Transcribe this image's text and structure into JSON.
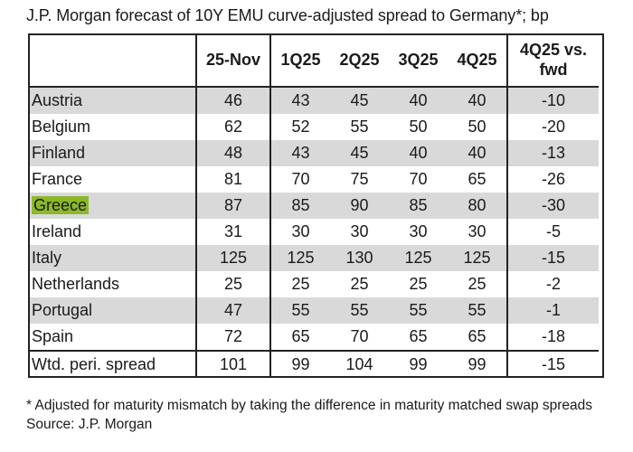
{
  "title": "J.P. Morgan forecast of 10Y EMU curve-adjusted spread to Germany*; bp",
  "header": {
    "blank": "",
    "c1": "25-Nov",
    "c2": "1Q25",
    "c3": "2Q25",
    "c4": "3Q25",
    "c5": "4Q25",
    "c6_line1": "4Q25 vs.",
    "c6_line2": "fwd"
  },
  "rows": [
    {
      "country": "Austria",
      "v": [
        "46",
        "43",
        "45",
        "40",
        "40",
        "-10"
      ]
    },
    {
      "country": "Belgium",
      "v": [
        "62",
        "52",
        "55",
        "50",
        "50",
        "-20"
      ]
    },
    {
      "country": "Finland",
      "v": [
        "48",
        "43",
        "45",
        "40",
        "40",
        "-13"
      ]
    },
    {
      "country": "France",
      "v": [
        "81",
        "70",
        "75",
        "70",
        "65",
        "-26"
      ]
    },
    {
      "country": "Greece",
      "v": [
        "87",
        "85",
        "90",
        "85",
        "80",
        "-30"
      ]
    },
    {
      "country": "Ireland",
      "v": [
        "31",
        "30",
        "30",
        "30",
        "30",
        "-5"
      ]
    },
    {
      "country": "Italy",
      "v": [
        "125",
        "125",
        "130",
        "125",
        "125",
        "-15"
      ]
    },
    {
      "country": "Netherlands",
      "v": [
        "25",
        "25",
        "25",
        "25",
        "25",
        "-2"
      ]
    },
    {
      "country": "Portugal",
      "v": [
        "47",
        "55",
        "55",
        "55",
        "55",
        "-1"
      ]
    },
    {
      "country": "Spain",
      "v": [
        "72",
        "65",
        "70",
        "65",
        "65",
        "-18"
      ]
    }
  ],
  "total": {
    "label": "Wtd. peri. spread",
    "v": [
      "101",
      "99",
      "104",
      "99",
      "99",
      "-15"
    ]
  },
  "highlight_color": "#8db829",
  "shade_color": "#d9d9d9",
  "footnote": "* Adjusted for maturity mismatch by taking the difference in maturity matched swap spreads",
  "source": "Source: J.P. Morgan"
}
